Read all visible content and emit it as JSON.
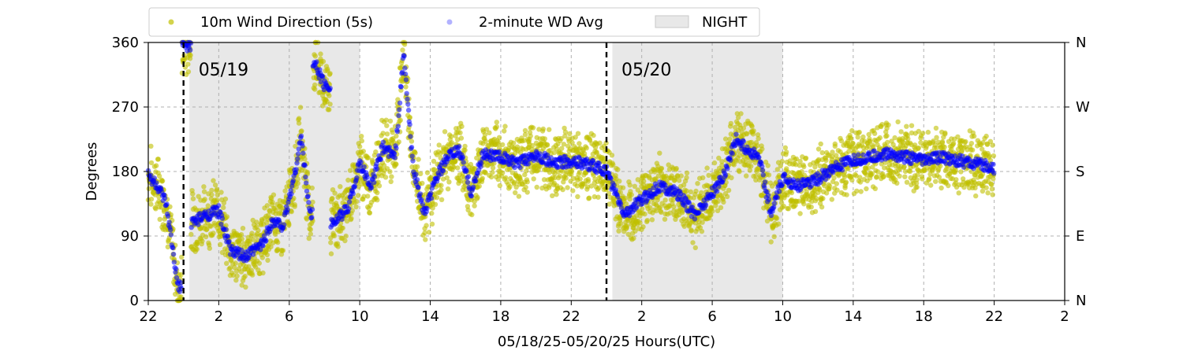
{
  "chart_data": {
    "type": "scatter",
    "title": "",
    "xlabel": "05/18/25-05/20/25  Hours(UTC)",
    "ylabel": "Degrees",
    "x_unit": "hours UTC, 22 on 05/18/25 through 02 on 05/21/25",
    "xlim": [
      "05/18 22:00",
      "05/21 02:00"
    ],
    "ylim": [
      0,
      360
    ],
    "x_ticks": [
      "22",
      "2",
      "6",
      "10",
      "14",
      "18",
      "22",
      "2",
      "6",
      "10",
      "14",
      "18",
      "22",
      "2"
    ],
    "y_ticks": [
      "0",
      "90",
      "180",
      "270",
      "360"
    ],
    "y2_ticks": [
      "N",
      "E",
      "S",
      "W",
      "N"
    ],
    "grid": true,
    "legend_position": "top-left",
    "legend": [
      "10m Wind Direction (5s)",
      "2-minute WD Avg",
      "NIGHT"
    ],
    "day_markers": [
      {
        "label": "05/19",
        "time": "05/19 00:00"
      },
      {
        "label": "05/20",
        "time": "05/20 00:00"
      }
    ],
    "night_periods": [
      {
        "start": "05/19 00:20",
        "end": "05/19 10:00"
      },
      {
        "start": "05/20 00:20",
        "end": "05/20 10:00"
      }
    ],
    "series": [
      {
        "name": "2-minute WD Avg",
        "color": "#0000ff",
        "points": [
          [
            "05/18 22:00",
            175
          ],
          [
            "05/18 22:30",
            160
          ],
          [
            "05/18 23:00",
            135
          ],
          [
            "05/18 23:20",
            80
          ],
          [
            "05/18 23:40",
            20
          ],
          [
            "05/19 00:10",
            355
          ],
          [
            "05/19 00:40",
            110
          ],
          [
            "05/19 01:20",
            120
          ],
          [
            "05/19 02:00",
            125
          ],
          [
            "05/19 02:40",
            70
          ],
          [
            "05/19 03:30",
            60
          ],
          [
            "05/19 04:30",
            80
          ],
          [
            "05/19 05:00",
            110
          ],
          [
            "05/19 05:40",
            105
          ],
          [
            "05/19 06:20",
            180
          ],
          [
            "05/19 06:40",
            230
          ],
          [
            "05/19 07:10",
            120
          ],
          [
            "05/19 07:30",
            330
          ],
          [
            "05/19 08:00",
            300
          ],
          [
            "05/19 08:40",
            110
          ],
          [
            "05/19 09:20",
            130
          ],
          [
            "05/19 10:00",
            190
          ],
          [
            "05/19 10:40",
            160
          ],
          [
            "05/19 11:20",
            215
          ],
          [
            "05/19 12:00",
            200
          ],
          [
            "05/19 12:30",
            345
          ],
          [
            "05/19 13:00",
            190
          ],
          [
            "05/19 13:40",
            120
          ],
          [
            "05/19 14:20",
            170
          ],
          [
            "05/19 15:00",
            200
          ],
          [
            "05/19 15:40",
            210
          ],
          [
            "05/19 16:20",
            150
          ],
          [
            "05/19 17:00",
            205
          ],
          [
            "05/19 18:00",
            200
          ],
          [
            "05/19 19:00",
            190
          ],
          [
            "05/19 20:00",
            205
          ],
          [
            "05/19 21:00",
            190
          ],
          [
            "05/19 22:00",
            195
          ],
          [
            "05/19 23:00",
            190
          ],
          [
            "05/20 00:00",
            180
          ],
          [
            "05/20 00:30",
            150
          ],
          [
            "05/20 01:00",
            120
          ],
          [
            "05/20 02:00",
            140
          ],
          [
            "05/20 03:00",
            160
          ],
          [
            "05/20 04:00",
            150
          ],
          [
            "05/20 05:00",
            120
          ],
          [
            "05/20 06:00",
            150
          ],
          [
            "05/20 06:40",
            175
          ],
          [
            "05/20 07:20",
            225
          ],
          [
            "05/20 08:00",
            210
          ],
          [
            "05/20 08:40",
            200
          ],
          [
            "05/20 09:20",
            120
          ],
          [
            "05/20 10:00",
            170
          ],
          [
            "05/20 11:00",
            160
          ],
          [
            "05/20 12:00",
            170
          ],
          [
            "05/20 13:00",
            185
          ],
          [
            "05/20 14:00",
            195
          ],
          [
            "05/20 15:00",
            200
          ],
          [
            "05/20 16:00",
            205
          ],
          [
            "05/20 17:00",
            200
          ],
          [
            "05/20 18:00",
            195
          ],
          [
            "05/20 19:00",
            200
          ],
          [
            "05/20 20:00",
            195
          ],
          [
            "05/20 21:00",
            190
          ],
          [
            "05/20 22:00",
            185
          ]
        ]
      },
      {
        "name": "10m Wind Direction (5s)",
        "color": "#c0c000",
        "note": "scatter around the 2-minute average, spread roughly ±20 to ±40 degrees"
      }
    ]
  },
  "colors": {
    "raw_points": "#c0c000",
    "avg_points": "#0000ff",
    "night_fill": "#e8e8e8",
    "grid": "#b0b0b0",
    "day_marker": "#000000"
  }
}
